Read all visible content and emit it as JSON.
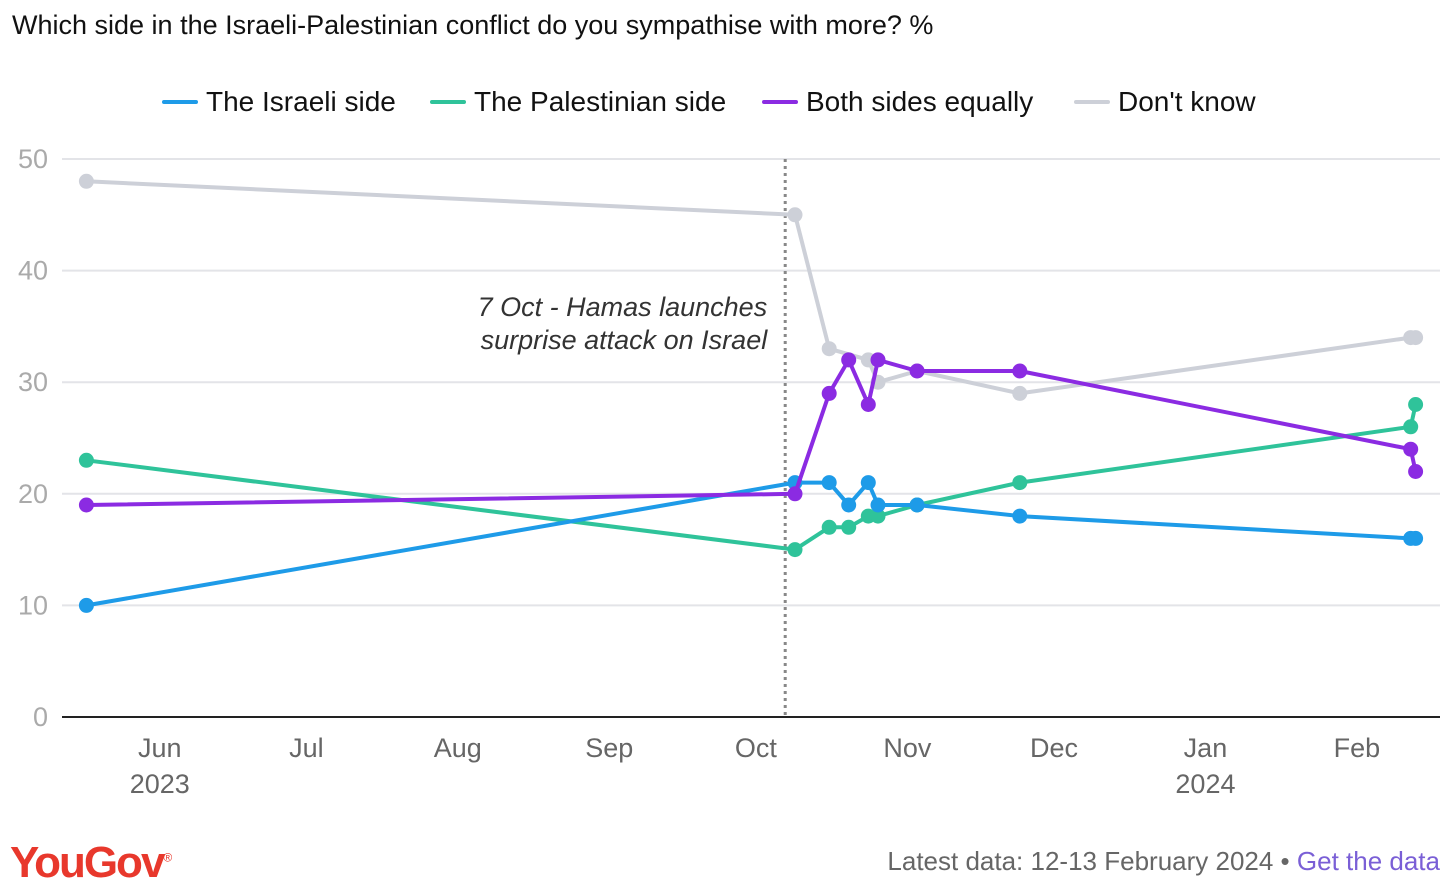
{
  "title": "Which side in the Israeli-Palestinian conflict do you sympathise with more? %",
  "colors": {
    "israeli": "#1e9be8",
    "palestinian": "#2fc39a",
    "both": "#8b2be2",
    "dontknow": "#cdd0d8",
    "annotation_line": "#888888",
    "brand": "#e8382c",
    "link": "#7a5fd6"
  },
  "chart_data": {
    "type": "line",
    "title": "Which side in the Israeli-Palestinian conflict do you sympathise with more? %",
    "xlabel": "",
    "ylabel": "",
    "ylim": [
      0,
      50
    ],
    "yticks": [
      0,
      10,
      20,
      30,
      40,
      50
    ],
    "xlim": [
      "2023-05-12",
      "2024-02-18"
    ],
    "xticks": [
      {
        "date": "2023-06-01",
        "label": "Jun",
        "sublabel": "2023"
      },
      {
        "date": "2023-07-01",
        "label": "Jul",
        "sublabel": ""
      },
      {
        "date": "2023-08-01",
        "label": "Aug",
        "sublabel": ""
      },
      {
        "date": "2023-09-01",
        "label": "Sep",
        "sublabel": ""
      },
      {
        "date": "2023-10-01",
        "label": "Oct",
        "sublabel": ""
      },
      {
        "date": "2023-11-01",
        "label": "Nov",
        "sublabel": ""
      },
      {
        "date": "2023-12-01",
        "label": "Dec",
        "sublabel": ""
      },
      {
        "date": "2024-01-01",
        "label": "Jan",
        "sublabel": "2024"
      },
      {
        "date": "2024-02-01",
        "label": "Feb",
        "sublabel": ""
      }
    ],
    "grid": true,
    "legend": "top",
    "annotations": [
      {
        "date": "2023-10-07",
        "text_lines": [
          "7 Oct - Hamas launches",
          "surprise attack on Israel"
        ]
      }
    ],
    "series": [
      {
        "name": "The Israeli side",
        "key": "israeli",
        "points": [
          [
            "2023-05-17",
            10
          ],
          [
            "2023-10-09",
            21
          ],
          [
            "2023-10-16",
            21
          ],
          [
            "2023-10-20",
            19
          ],
          [
            "2023-10-24",
            21
          ],
          [
            "2023-10-26",
            19
          ],
          [
            "2023-11-03",
            19
          ],
          [
            "2023-11-24",
            18
          ],
          [
            "2024-02-12",
            16
          ],
          [
            "2024-02-13",
            16
          ]
        ]
      },
      {
        "name": "The Palestinian side",
        "key": "palestinian",
        "points": [
          [
            "2023-05-17",
            23
          ],
          [
            "2023-10-09",
            15
          ],
          [
            "2023-10-16",
            17
          ],
          [
            "2023-10-20",
            17
          ],
          [
            "2023-10-24",
            18
          ],
          [
            "2023-10-26",
            18
          ],
          [
            "2023-11-03",
            19
          ],
          [
            "2023-11-24",
            21
          ],
          [
            "2024-02-12",
            26
          ],
          [
            "2024-02-13",
            28
          ]
        ]
      },
      {
        "name": "Both sides equally",
        "key": "both",
        "points": [
          [
            "2023-05-17",
            19
          ],
          [
            "2023-10-09",
            20
          ],
          [
            "2023-10-16",
            29
          ],
          [
            "2023-10-20",
            32
          ],
          [
            "2023-10-24",
            28
          ],
          [
            "2023-10-26",
            32
          ],
          [
            "2023-11-03",
            31
          ],
          [
            "2023-11-24",
            31
          ],
          [
            "2024-02-12",
            24
          ],
          [
            "2024-02-13",
            22
          ]
        ]
      },
      {
        "name": "Don't know",
        "key": "dontknow",
        "points": [
          [
            "2023-05-17",
            48
          ],
          [
            "2023-10-09",
            45
          ],
          [
            "2023-10-16",
            33
          ],
          [
            "2023-10-24",
            32
          ],
          [
            "2023-10-26",
            30
          ],
          [
            "2023-11-03",
            31
          ],
          [
            "2023-11-24",
            29
          ],
          [
            "2024-02-12",
            34
          ],
          [
            "2024-02-13",
            34
          ]
        ]
      }
    ]
  },
  "legend": [
    {
      "label": "The Israeli side",
      "key": "israeli"
    },
    {
      "label": "The Palestinian side",
      "key": "palestinian"
    },
    {
      "label": "Both sides equally",
      "key": "both"
    },
    {
      "label": "Don't know",
      "key": "dontknow"
    }
  ],
  "footer": {
    "brand": "YouGov",
    "latest_data": "Latest data: 12-13 February 2024 • ",
    "link_text": "Get the data"
  }
}
